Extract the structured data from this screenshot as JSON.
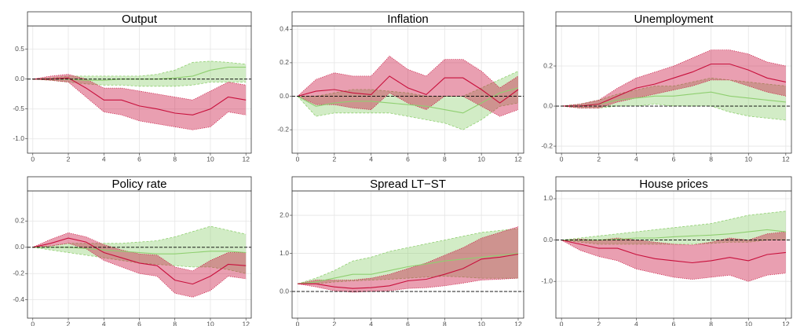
{
  "chart_data": [
    {
      "type": "line",
      "title": "Output",
      "x": [
        0,
        1,
        2,
        3,
        4,
        5,
        6,
        7,
        8,
        9,
        10,
        11,
        12
      ],
      "xlim": [
        -0.3,
        12.3
      ],
      "xticks": [
        0,
        2,
        4,
        6,
        8,
        10,
        12
      ],
      "ylim": [
        -1.24,
        0.89
      ],
      "yticks": [
        {
          "value": -1,
          "label": "-1.0"
        },
        -0.5,
        {
          "value": 0,
          "label": "0.0"
        },
        0.5
      ],
      "grid": true,
      "reference_line": 0,
      "bands": [
        {
          "color": "#8fcf70",
          "lower": [
            0,
            -0.02,
            -0.05,
            -0.08,
            -0.1,
            -0.1,
            -0.12,
            -0.12,
            -0.12,
            -0.1,
            -0.05,
            -0.05,
            -0.05
          ],
          "upper": [
            0,
            0.02,
            0.05,
            0.05,
            0.05,
            0.05,
            0.05,
            0.08,
            0.15,
            0.28,
            0.3,
            0.28,
            0.25
          ]
        },
        {
          "color": "#c8103c",
          "lower": [
            0,
            -0.02,
            -0.05,
            -0.3,
            -0.55,
            -0.6,
            -0.7,
            -0.75,
            -0.8,
            -0.85,
            -0.8,
            -0.55,
            -0.6
          ],
          "upper": [
            0,
            0.05,
            0.08,
            0,
            -0.15,
            -0.15,
            -0.2,
            -0.25,
            -0.3,
            -0.35,
            -0.2,
            -0.05,
            -0.1
          ]
        }
      ],
      "series": [
        {
          "color": "#8fcf70",
          "values": [
            0,
            0,
            0,
            -0.02,
            -0.02,
            0,
            0,
            0,
            0.02,
            0.05,
            0.15,
            0.2,
            0.2
          ]
        },
        {
          "color": "#c8103c",
          "values": [
            0,
            0,
            0.02,
            -0.15,
            -0.35,
            -0.35,
            -0.45,
            -0.5,
            -0.57,
            -0.6,
            -0.5,
            -0.3,
            -0.35
          ]
        }
      ]
    },
    {
      "type": "line",
      "title": "Inflation",
      "x": [
        0,
        1,
        2,
        3,
        4,
        5,
        6,
        7,
        8,
        9,
        10,
        11,
        12
      ],
      "xlim": [
        -0.3,
        12.3
      ],
      "xticks": [
        0,
        2,
        4,
        6,
        8,
        10,
        12
      ],
      "ylim": [
        -0.34,
        0.42
      ],
      "yticks": [
        -0.2,
        {
          "value": 0,
          "label": "0.0"
        },
        0.2,
        0.4
      ],
      "grid": true,
      "reference_line": 0,
      "bands": [
        {
          "color": "#8fcf70",
          "lower": [
            0,
            -0.12,
            -0.1,
            -0.1,
            -0.1,
            -0.1,
            -0.12,
            -0.14,
            -0.16,
            -0.2,
            -0.14,
            -0.06,
            -0.04
          ],
          "upper": [
            0,
            0,
            0.02,
            0.04,
            0.04,
            0.03,
            0.02,
            0,
            0,
            0,
            0.05,
            0.1,
            0.15
          ]
        },
        {
          "color": "#c8103c",
          "lower": [
            0,
            -0.05,
            -0.05,
            -0.07,
            -0.08,
            0.02,
            -0.04,
            -0.08,
            0,
            0,
            -0.06,
            -0.12,
            -0.08
          ],
          "upper": [
            0,
            0.1,
            0.14,
            0.12,
            0.12,
            0.24,
            0.16,
            0.12,
            0.22,
            0.22,
            0.15,
            0.05,
            0.12
          ]
        }
      ],
      "series": [
        {
          "color": "#8fcf70",
          "values": [
            0,
            -0.06,
            -0.04,
            -0.03,
            -0.03,
            -0.04,
            -0.05,
            -0.06,
            -0.08,
            -0.1,
            -0.04,
            0.02,
            0.05
          ]
        },
        {
          "color": "#c8103c",
          "values": [
            0,
            0.03,
            0.04,
            0.02,
            0.01,
            0.12,
            0.05,
            0.01,
            0.11,
            0.11,
            0.04,
            -0.04,
            0.04
          ]
        }
      ]
    },
    {
      "type": "line",
      "title": "Unemployment",
      "x": [
        0,
        1,
        2,
        3,
        4,
        5,
        6,
        7,
        8,
        9,
        10,
        11,
        12
      ],
      "xlim": [
        -0.3,
        12.3
      ],
      "xticks": [
        0,
        2,
        4,
        6,
        8,
        10,
        12
      ],
      "ylim": [
        -0.235,
        0.4
      ],
      "yticks": [
        -0.2,
        {
          "value": 0,
          "label": "0.0"
        },
        0.2
      ],
      "grid": true,
      "reference_line": 0,
      "bands": [
        {
          "color": "#8fcf70",
          "lower": [
            0,
            -0.01,
            -0.01,
            0,
            0,
            0.01,
            0,
            0,
            0,
            -0.03,
            -0.05,
            -0.06,
            -0.07
          ],
          "upper": [
            0,
            0.01,
            0.03,
            0.06,
            0.08,
            0.1,
            0.1,
            0.12,
            0.14,
            0.13,
            0.12,
            0.11,
            0.1
          ]
        },
        {
          "color": "#c8103c",
          "lower": [
            0,
            -0.01,
            -0.01,
            0.02,
            0.04,
            0.06,
            0.08,
            0.1,
            0.13,
            0.13,
            0.1,
            0.07,
            0.05
          ],
          "upper": [
            0,
            0.01,
            0.03,
            0.09,
            0.14,
            0.17,
            0.2,
            0.24,
            0.28,
            0.28,
            0.26,
            0.22,
            0.2
          ]
        }
      ],
      "series": [
        {
          "color": "#8fcf70",
          "values": [
            0,
            0,
            0.01,
            0.03,
            0.04,
            0.05,
            0.05,
            0.06,
            0.07,
            0.05,
            0.04,
            0.03,
            0.02
          ]
        },
        {
          "color": "#c8103c",
          "values": [
            0,
            0,
            0.01,
            0.05,
            0.09,
            0.11,
            0.14,
            0.17,
            0.21,
            0.21,
            0.18,
            0.14,
            0.12
          ]
        }
      ]
    },
    {
      "type": "line",
      "title": "Policy rate",
      "x": [
        0,
        1,
        2,
        3,
        4,
        5,
        6,
        7,
        8,
        9,
        10,
        11,
        12
      ],
      "xlim": [
        -0.3,
        12.3
      ],
      "xticks": [
        0,
        2,
        4,
        6,
        8,
        10,
        12
      ],
      "ylim": [
        -0.54,
        0.43
      ],
      "yticks": [
        -0.4,
        -0.2,
        {
          "value": 0,
          "label": "0.0"
        },
        0.2
      ],
      "grid": true,
      "reference_line": 0,
      "bands": [
        {
          "color": "#8fcf70",
          "lower": [
            0,
            -0.02,
            -0.04,
            -0.06,
            -0.08,
            -0.1,
            -0.12,
            -0.13,
            -0.14,
            -0.15,
            -0.15,
            -0.17,
            -0.2
          ],
          "upper": [
            0,
            0.01,
            0.03,
            0.03,
            0.03,
            0.03,
            0.04,
            0.05,
            0.08,
            0.12,
            0.16,
            0.13,
            0.1
          ]
        },
        {
          "color": "#c8103c",
          "lower": [
            0,
            0.01,
            0.03,
            -0.01,
            -0.1,
            -0.15,
            -0.2,
            -0.22,
            -0.35,
            -0.38,
            -0.33,
            -0.22,
            -0.24
          ],
          "upper": [
            0,
            0.06,
            0.11,
            0.08,
            0.02,
            -0.02,
            -0.05,
            -0.06,
            -0.15,
            -0.18,
            -0.1,
            -0.04,
            -0.04
          ]
        }
      ],
      "series": [
        {
          "color": "#8fcf70",
          "values": [
            0,
            0,
            0,
            -0.01,
            -0.02,
            -0.03,
            -0.04,
            -0.05,
            -0.05,
            -0.04,
            -0.03,
            -0.03,
            -0.04
          ]
        },
        {
          "color": "#c8103c",
          "values": [
            0,
            0.03,
            0.07,
            0.04,
            -0.04,
            -0.08,
            -0.12,
            -0.14,
            -0.25,
            -0.28,
            -0.22,
            -0.13,
            -0.14
          ]
        }
      ]
    },
    {
      "type": "line",
      "title": "Spread LT−ST",
      "x": [
        0,
        1,
        2,
        3,
        4,
        5,
        6,
        7,
        8,
        9,
        10,
        11,
        12
      ],
      "xlim": [
        -0.3,
        12.3
      ],
      "xticks": [
        0,
        2,
        4,
        6,
        8,
        10,
        12
      ],
      "ylim": [
        -0.7,
        2.64
      ],
      "yticks": [
        {
          "value": 0,
          "label": "0.0"
        },
        {
          "value": 1,
          "label": "1.0"
        },
        {
          "value": 2,
          "label": "2.0"
        }
      ],
      "grid": true,
      "reference_line": 0,
      "bands": [
        {
          "color": "#8fcf70",
          "lower": [
            0.2,
            0.2,
            0.25,
            0.28,
            0.3,
            0.32,
            0.35,
            0.38,
            0.4,
            0.38,
            0.35,
            0.35,
            0.35
          ],
          "upper": [
            0.2,
            0.35,
            0.55,
            0.8,
            0.9,
            1.05,
            1.15,
            1.25,
            1.35,
            1.45,
            1.55,
            1.6,
            1.65
          ]
        },
        {
          "color": "#c8103c",
          "lower": [
            0.2,
            0.12,
            0.02,
            -0.02,
            0,
            0.02,
            0.08,
            0.1,
            0.15,
            0.22,
            0.3,
            0.32,
            0.35
          ],
          "upper": [
            0.2,
            0.3,
            0.3,
            0.3,
            0.35,
            0.45,
            0.6,
            0.75,
            0.95,
            1.15,
            1.4,
            1.55,
            1.7
          ]
        }
      ],
      "series": [
        {
          "color": "#8fcf70",
          "values": [
            0.2,
            0.25,
            0.35,
            0.45,
            0.45,
            0.55,
            0.65,
            0.72,
            0.8,
            0.85,
            0.9,
            0.95,
            1.0
          ]
        },
        {
          "color": "#c8103c",
          "values": [
            0.2,
            0.2,
            0.12,
            0.08,
            0.1,
            0.15,
            0.28,
            0.32,
            0.45,
            0.6,
            0.85,
            0.9,
            0.98
          ]
        }
      ]
    },
    {
      "type": "line",
      "title": "House prices",
      "x": [
        0,
        1,
        2,
        3,
        4,
        5,
        6,
        7,
        8,
        9,
        10,
        11,
        12
      ],
      "xlim": [
        -0.3,
        12.3
      ],
      "xticks": [
        0,
        2,
        4,
        6,
        8,
        10,
        12
      ],
      "ylim": [
        -1.89,
        1.19
      ],
      "yticks": [
        {
          "value": -1,
          "label": "-1.0"
        },
        {
          "value": 0,
          "label": "0.0"
        },
        {
          "value": 1,
          "label": "1.0"
        }
      ],
      "grid": true,
      "reference_line": 0,
      "bands": [
        {
          "color": "#8fcf70",
          "lower": [
            0,
            -0.05,
            -0.1,
            -0.1,
            -0.1,
            -0.1,
            -0.1,
            -0.1,
            -0.08,
            -0.05,
            -0.05,
            0,
            0
          ],
          "upper": [
            0,
            0.05,
            0.1,
            0.15,
            0.2,
            0.25,
            0.3,
            0.35,
            0.4,
            0.5,
            0.6,
            0.65,
            0.7
          ]
        },
        {
          "color": "#c8103c",
          "lower": [
            0,
            -0.25,
            -0.4,
            -0.5,
            -0.7,
            -0.8,
            -0.9,
            -0.95,
            -0.9,
            -0.85,
            -1.0,
            -0.85,
            -0.8
          ],
          "upper": [
            0,
            0.02,
            0,
            0.05,
            0,
            -0.05,
            -0.1,
            -0.12,
            -0.05,
            0.05,
            0,
            0.15,
            0.2
          ]
        }
      ],
      "series": [
        {
          "color": "#8fcf70",
          "values": [
            0,
            0,
            0,
            0.02,
            0.05,
            0.05,
            0.08,
            0.1,
            0.12,
            0.15,
            0.2,
            0.25,
            0.2
          ]
        },
        {
          "color": "#c8103c",
          "values": [
            0,
            -0.1,
            -0.2,
            -0.2,
            -0.35,
            -0.45,
            -0.5,
            -0.55,
            -0.5,
            -0.42,
            -0.5,
            -0.35,
            -0.3
          ]
        }
      ]
    }
  ]
}
